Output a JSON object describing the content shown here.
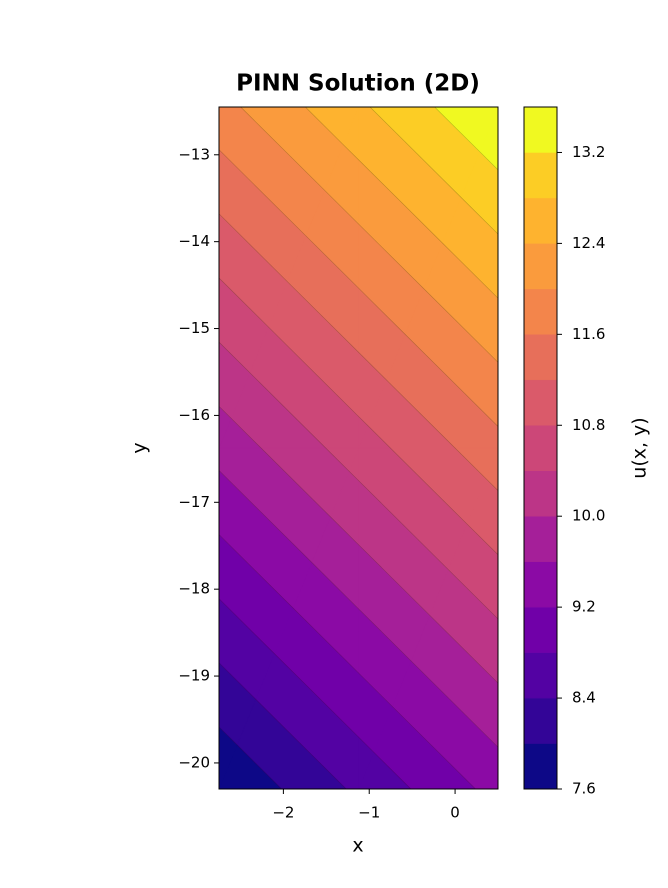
{
  "chart_data": {
    "type": "contour",
    "title": "PINN Solution (2D)",
    "xlabel": "x",
    "ylabel": "y",
    "colorbar_label": "u(x, y)",
    "x": [
      -2.75,
      -1.125,
      0.5
    ],
    "y": [
      -20.3,
      -16.375,
      -12.45
    ],
    "z": [
      [
        7.613,
        8.476,
        9.339
      ],
      [
        9.74,
        10.603,
        11.466
      ],
      [
        11.866,
        12.729,
        13.592
      ]
    ],
    "levels": [
      7.6,
      8.0,
      8.4,
      8.8,
      9.2,
      9.6,
      10.0,
      10.4,
      10.8,
      11.2,
      11.6,
      12.0,
      12.4,
      12.8,
      13.2,
      13.6
    ],
    "colors": [
      "#0d0887",
      "#330597",
      "#5302a3",
      "#7000a8",
      "#8b0aa5",
      "#a51f99",
      "#bc3587",
      "#cc4778",
      "#da5a6a",
      "#e76f5a",
      "#f3854b",
      "#fa9b3d",
      "#feb32f",
      "#fccd25",
      "#f0f921"
    ],
    "xlim": [
      -2.75,
      0.5
    ],
    "ylim": [
      -20.3,
      -12.45
    ],
    "xticks": [
      {
        "value": -2,
        "label": "−2"
      },
      {
        "value": -1,
        "label": "−1"
      },
      0
    ],
    "yticks": [
      {
        "value": -13,
        "label": "−13"
      },
      {
        "value": -14,
        "label": "−14"
      },
      {
        "value": -15,
        "label": "−15"
      },
      {
        "value": -16,
        "label": "−16"
      },
      {
        "value": -17,
        "label": "−17"
      },
      {
        "value": -18,
        "label": "−18"
      },
      {
        "value": -19,
        "label": "−19"
      },
      {
        "value": -20,
        "label": "−20"
      }
    ],
    "colorbar_ticks": [
      7.6,
      8.4,
      9.2,
      {
        "value": 10,
        "label": "10.0"
      },
      10.8,
      11.6,
      12.4,
      13.2
    ]
  }
}
